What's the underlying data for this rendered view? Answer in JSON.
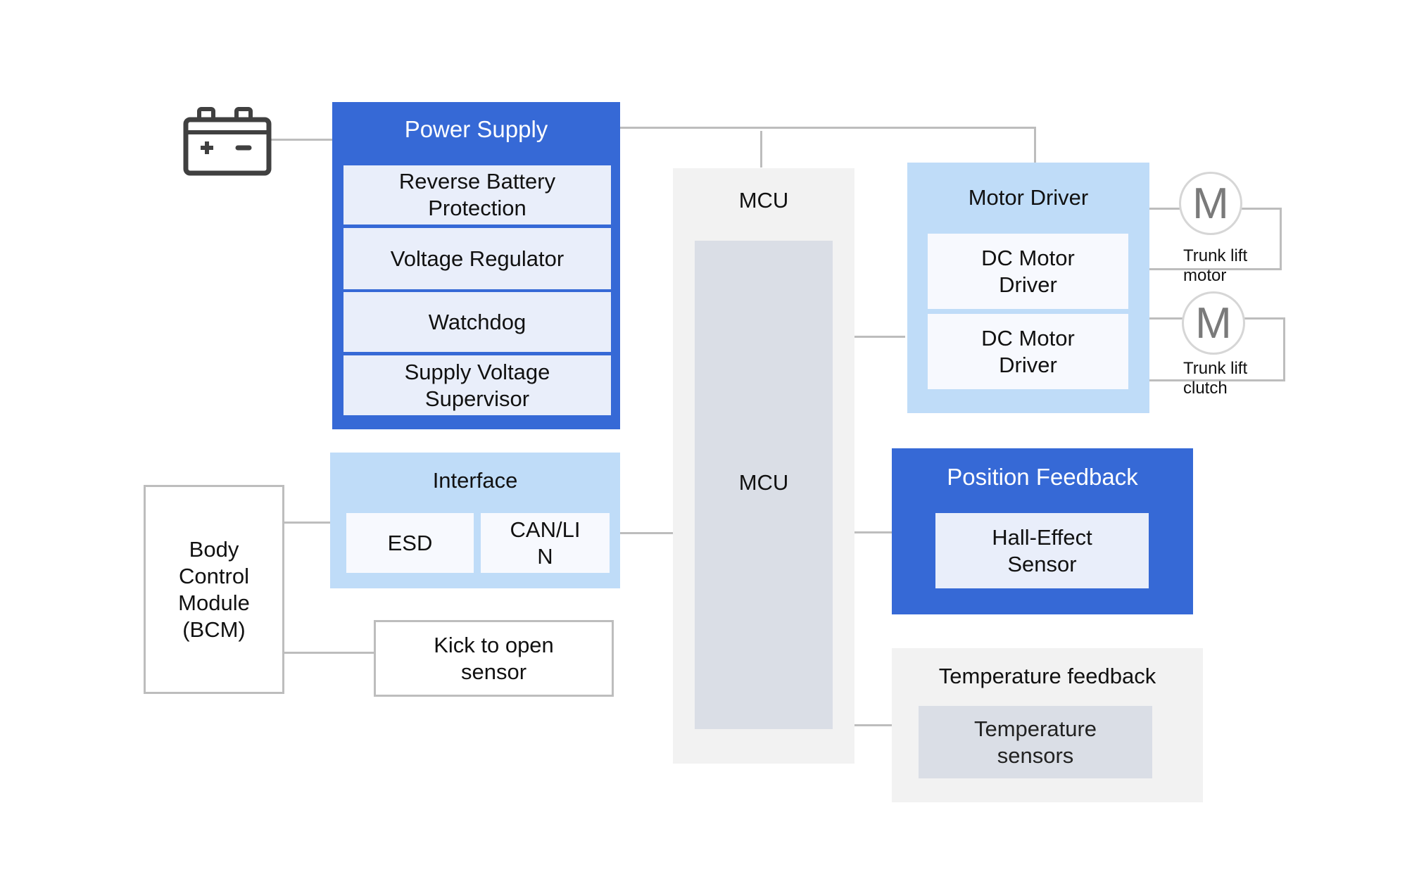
{
  "colors": {
    "primary_blue": "#3669d6",
    "pale_blue": "#e9eefa",
    "light_blue": "#bfdcf8",
    "gray": "#f2f2f2",
    "mid_gray": "#dadee6",
    "connector": "#bdbdbd"
  },
  "battery": {
    "icon": "battery-icon"
  },
  "power_supply": {
    "title": "Power Supply",
    "items": [
      "Reverse Battery Protection",
      "Voltage Regulator",
      "Watchdog",
      "Supply Voltage Supervisor"
    ]
  },
  "mcu": {
    "title": "MCU",
    "inner_label": "MCU"
  },
  "motor_driver": {
    "title": "Motor Driver",
    "items": [
      "DC Motor Driver",
      "DC Motor Driver"
    ]
  },
  "motors": [
    {
      "symbol": "M",
      "label": "Trunk lift motor"
    },
    {
      "symbol": "M",
      "label": "Trunk lift clutch"
    }
  ],
  "interface": {
    "title": "Interface",
    "items": [
      "ESD",
      "CAN/LIN"
    ]
  },
  "bcm": {
    "label": "Body Control Module (BCM)"
  },
  "kick_sensor": {
    "label": "Kick to open sensor"
  },
  "position_feedback": {
    "title": "Position Feedback",
    "items": [
      "Hall-Effect Sensor"
    ]
  },
  "temperature_feedback": {
    "title": "Temperature feedback",
    "items": [
      "Temperature sensors"
    ]
  }
}
